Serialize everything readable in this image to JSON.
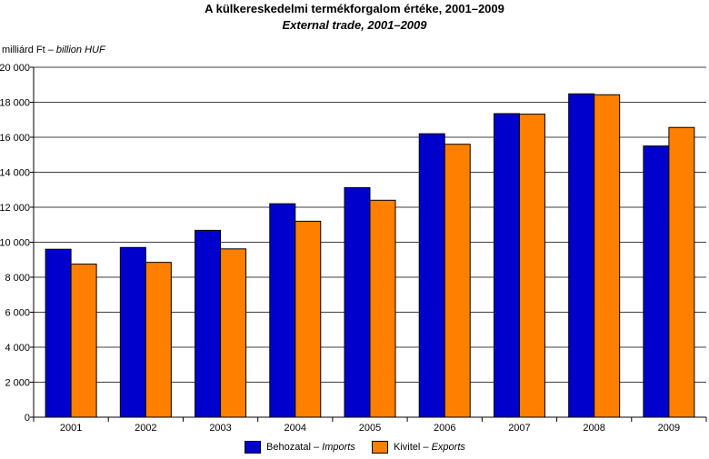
{
  "chart_data": {
    "type": "bar",
    "title": "A külkereskedelmi termékforgalom értéke, 2001–2009",
    "subtitle": "External trade, 2001–2009",
    "ylabel": "milliárd Ft",
    "ylabel_en": "billion HUF",
    "ylabel_sep": " – ",
    "categories": [
      "2001",
      "2002",
      "2003",
      "2004",
      "2005",
      "2006",
      "2007",
      "2008",
      "2009"
    ],
    "series": [
      {
        "name": "Behozatal",
        "name_en": "Imports",
        "color": "#0000cc",
        "values": [
          9600,
          9700,
          10680,
          12200,
          13120,
          16200,
          17350,
          18480,
          15500
        ]
      },
      {
        "name": "Kivitel",
        "name_en": "Exports",
        "color": "#ff8000",
        "values": [
          8750,
          8850,
          9620,
          11200,
          12400,
          15600,
          17320,
          18430,
          16560
        ]
      }
    ],
    "ylim": [
      0,
      20000
    ],
    "yticks": [
      0,
      2000,
      4000,
      6000,
      8000,
      10000,
      12000,
      14000,
      16000,
      18000,
      20000
    ],
    "ytick_labels": [
      "0",
      "2 000",
      "4 000",
      "6 000",
      "8 000",
      "10 000",
      "12 000",
      "14 000",
      "16 000",
      "18 000",
      "20 000"
    ],
    "grid": true,
    "legend_position": "bottom-center"
  }
}
